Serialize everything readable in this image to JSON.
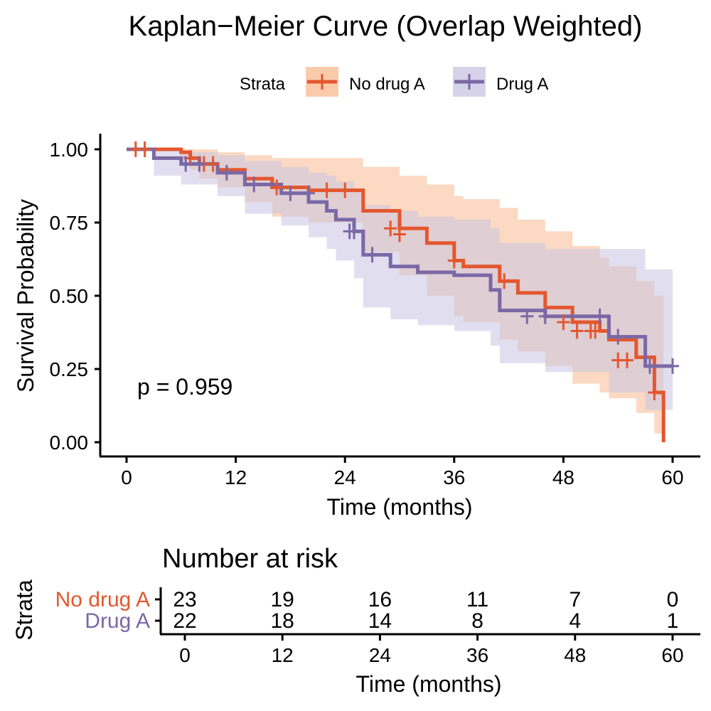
{
  "chart_data": [
    {
      "type": "line",
      "subtype": "kaplan-meier",
      "title": "Kaplan−Meier Curve (Overlap Weighted)",
      "xlabel": "Time (months)",
      "ylabel": "Survival Probability",
      "xlim": [
        0,
        60
      ],
      "ylim": [
        0,
        1
      ],
      "x_ticks": [
        0,
        12,
        24,
        36,
        48,
        60
      ],
      "y_ticks": [
        0.0,
        0.25,
        0.5,
        0.75,
        1.0
      ],
      "x_tick_labels": [
        "0",
        "12",
        "24",
        "36",
        "48",
        "60"
      ],
      "y_tick_labels": [
        "0.00",
        "0.25",
        "0.50",
        "0.75",
        "1.00"
      ],
      "legend": {
        "title": "Strata",
        "position": "top",
        "labels": [
          "No drug A",
          "Drug A"
        ]
      },
      "annotation": "p = 0.959",
      "grid": false,
      "series": [
        {
          "name": "No drug A",
          "color": "#E4572E",
          "fill": "#F8B98F",
          "x": [
            0,
            6,
            7,
            8,
            10,
            13,
            16,
            20,
            26,
            30,
            33,
            36,
            37,
            41,
            43,
            46,
            49,
            52,
            53,
            56,
            58,
            59,
            59
          ],
          "y": [
            1.0,
            0.99,
            0.97,
            0.95,
            0.93,
            0.9,
            0.87,
            0.86,
            0.79,
            0.73,
            0.68,
            0.62,
            0.6,
            0.55,
            0.51,
            0.46,
            0.41,
            0.38,
            0.35,
            0.29,
            0.17,
            0.17,
            0.0
          ],
          "upper": [
            1.0,
            1.0,
            1.0,
            1.0,
            0.99,
            0.98,
            0.97,
            0.97,
            0.94,
            0.91,
            0.88,
            0.84,
            0.83,
            0.8,
            0.76,
            0.72,
            0.67,
            0.63,
            0.6,
            0.55,
            0.5,
            0.5,
            0.0
          ],
          "lower": [
            1.0,
            0.96,
            0.93,
            0.9,
            0.87,
            0.82,
            0.77,
            0.75,
            0.65,
            0.57,
            0.5,
            0.43,
            0.41,
            0.35,
            0.31,
            0.26,
            0.2,
            0.17,
            0.15,
            0.1,
            0.03,
            0.03,
            0.0
          ],
          "censor_x": [
            1,
            2,
            7,
            8.5,
            9.5,
            16.5,
            22,
            24,
            29,
            30,
            36,
            41.5,
            48,
            49.5,
            51,
            51.5,
            54,
            55,
            58
          ],
          "censor_y": [
            1.0,
            1.0,
            0.97,
            0.95,
            0.95,
            0.87,
            0.86,
            0.86,
            0.73,
            0.71,
            0.62,
            0.55,
            0.41,
            0.38,
            0.38,
            0.38,
            0.28,
            0.28,
            0.17
          ]
        },
        {
          "name": "Drug A",
          "color": "#7A68A6",
          "fill": "#C8C4E2",
          "x": [
            0,
            3,
            6,
            10,
            13,
            17,
            20,
            22,
            23,
            25,
            26,
            29,
            32,
            36,
            39,
            40,
            41,
            46,
            53,
            57,
            60
          ],
          "y": [
            1.0,
            0.97,
            0.95,
            0.92,
            0.88,
            0.85,
            0.82,
            0.79,
            0.76,
            0.72,
            0.64,
            0.6,
            0.58,
            0.57,
            0.57,
            0.52,
            0.45,
            0.43,
            0.36,
            0.26,
            0.26
          ],
          "upper": [
            1.0,
            1.0,
            0.99,
            0.98,
            0.96,
            0.94,
            0.92,
            0.91,
            0.89,
            0.86,
            0.81,
            0.79,
            0.77,
            0.76,
            0.76,
            0.73,
            0.68,
            0.66,
            0.66,
            0.59,
            0.59
          ],
          "lower": [
            1.0,
            0.91,
            0.88,
            0.84,
            0.78,
            0.74,
            0.7,
            0.66,
            0.62,
            0.56,
            0.46,
            0.42,
            0.4,
            0.38,
            0.38,
            0.33,
            0.27,
            0.24,
            0.17,
            0.11,
            0.11
          ],
          "censor_x": [
            6.5,
            8,
            11,
            14,
            18,
            20,
            24.5,
            25,
            27,
            44,
            46,
            52,
            54,
            57.5,
            60
          ],
          "censor_y": [
            0.95,
            0.95,
            0.92,
            0.88,
            0.85,
            0.85,
            0.72,
            0.72,
            0.64,
            0.43,
            0.43,
            0.43,
            0.36,
            0.26,
            0.26
          ]
        }
      ]
    },
    {
      "type": "table",
      "title": "Number at risk",
      "xlabel": "Time (months)",
      "ylabel": "Strata",
      "x_ticks": [
        0,
        12,
        24,
        36,
        48,
        60
      ],
      "x_tick_labels": [
        "0",
        "12",
        "24",
        "36",
        "48",
        "60"
      ],
      "rows": [
        {
          "name": "No drug A",
          "color": "#E4572E",
          "values": [
            "23",
            "19",
            "16",
            "11",
            "7",
            "0"
          ]
        },
        {
          "name": "Drug A",
          "color": "#7A68A6",
          "values": [
            "22",
            "18",
            "14",
            "8",
            "4",
            "1"
          ]
        }
      ]
    }
  ]
}
